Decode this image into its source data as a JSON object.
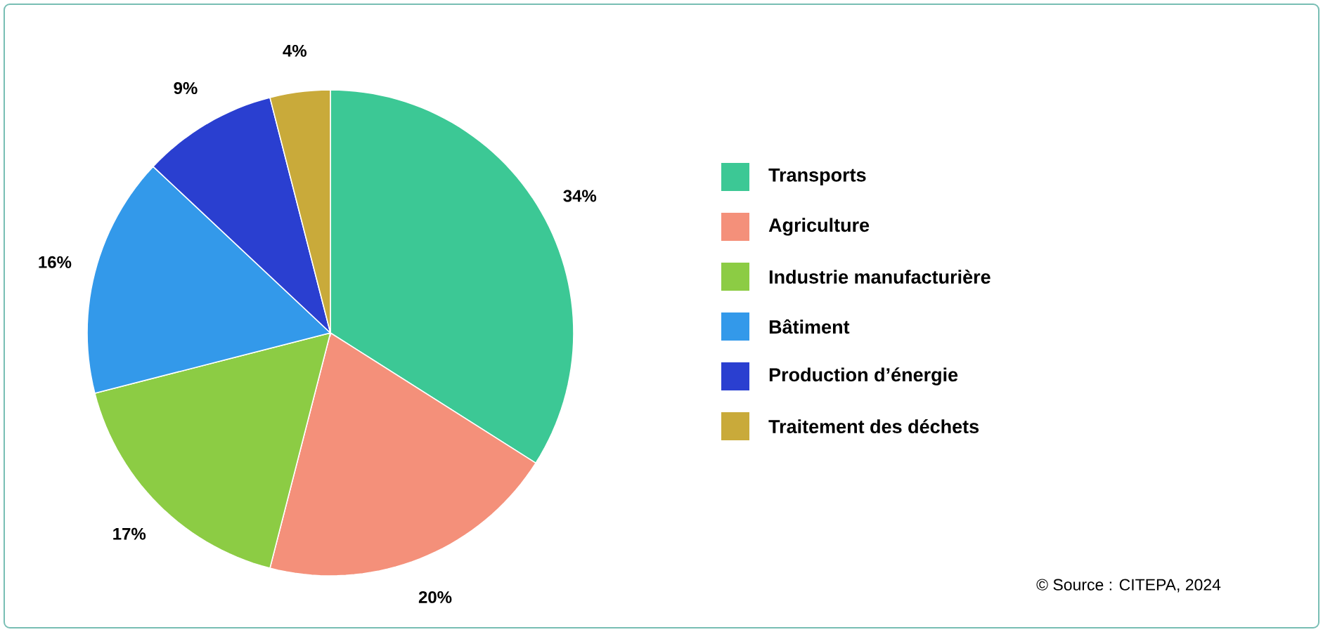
{
  "chart_data": {
    "type": "pie",
    "categories": [
      "Transports",
      "Agriculture",
      "Industrie manufacturière",
      "Bâtiment",
      "Production d’énergie",
      "Traitement des déchets"
    ],
    "values": [
      34,
      20,
      17,
      16,
      9,
      4
    ],
    "colors": [
      "#3cc895",
      "#f4907a",
      "#8ccc44",
      "#3399ea",
      "#2a3fd0",
      "#c9aa3a"
    ],
    "value_labels": [
      "34%",
      "20%",
      "17%",
      "16%",
      "9%",
      "4%"
    ],
    "legend": "right",
    "annotations": [
      "© Source : CITEPA, 2024"
    ]
  }
}
